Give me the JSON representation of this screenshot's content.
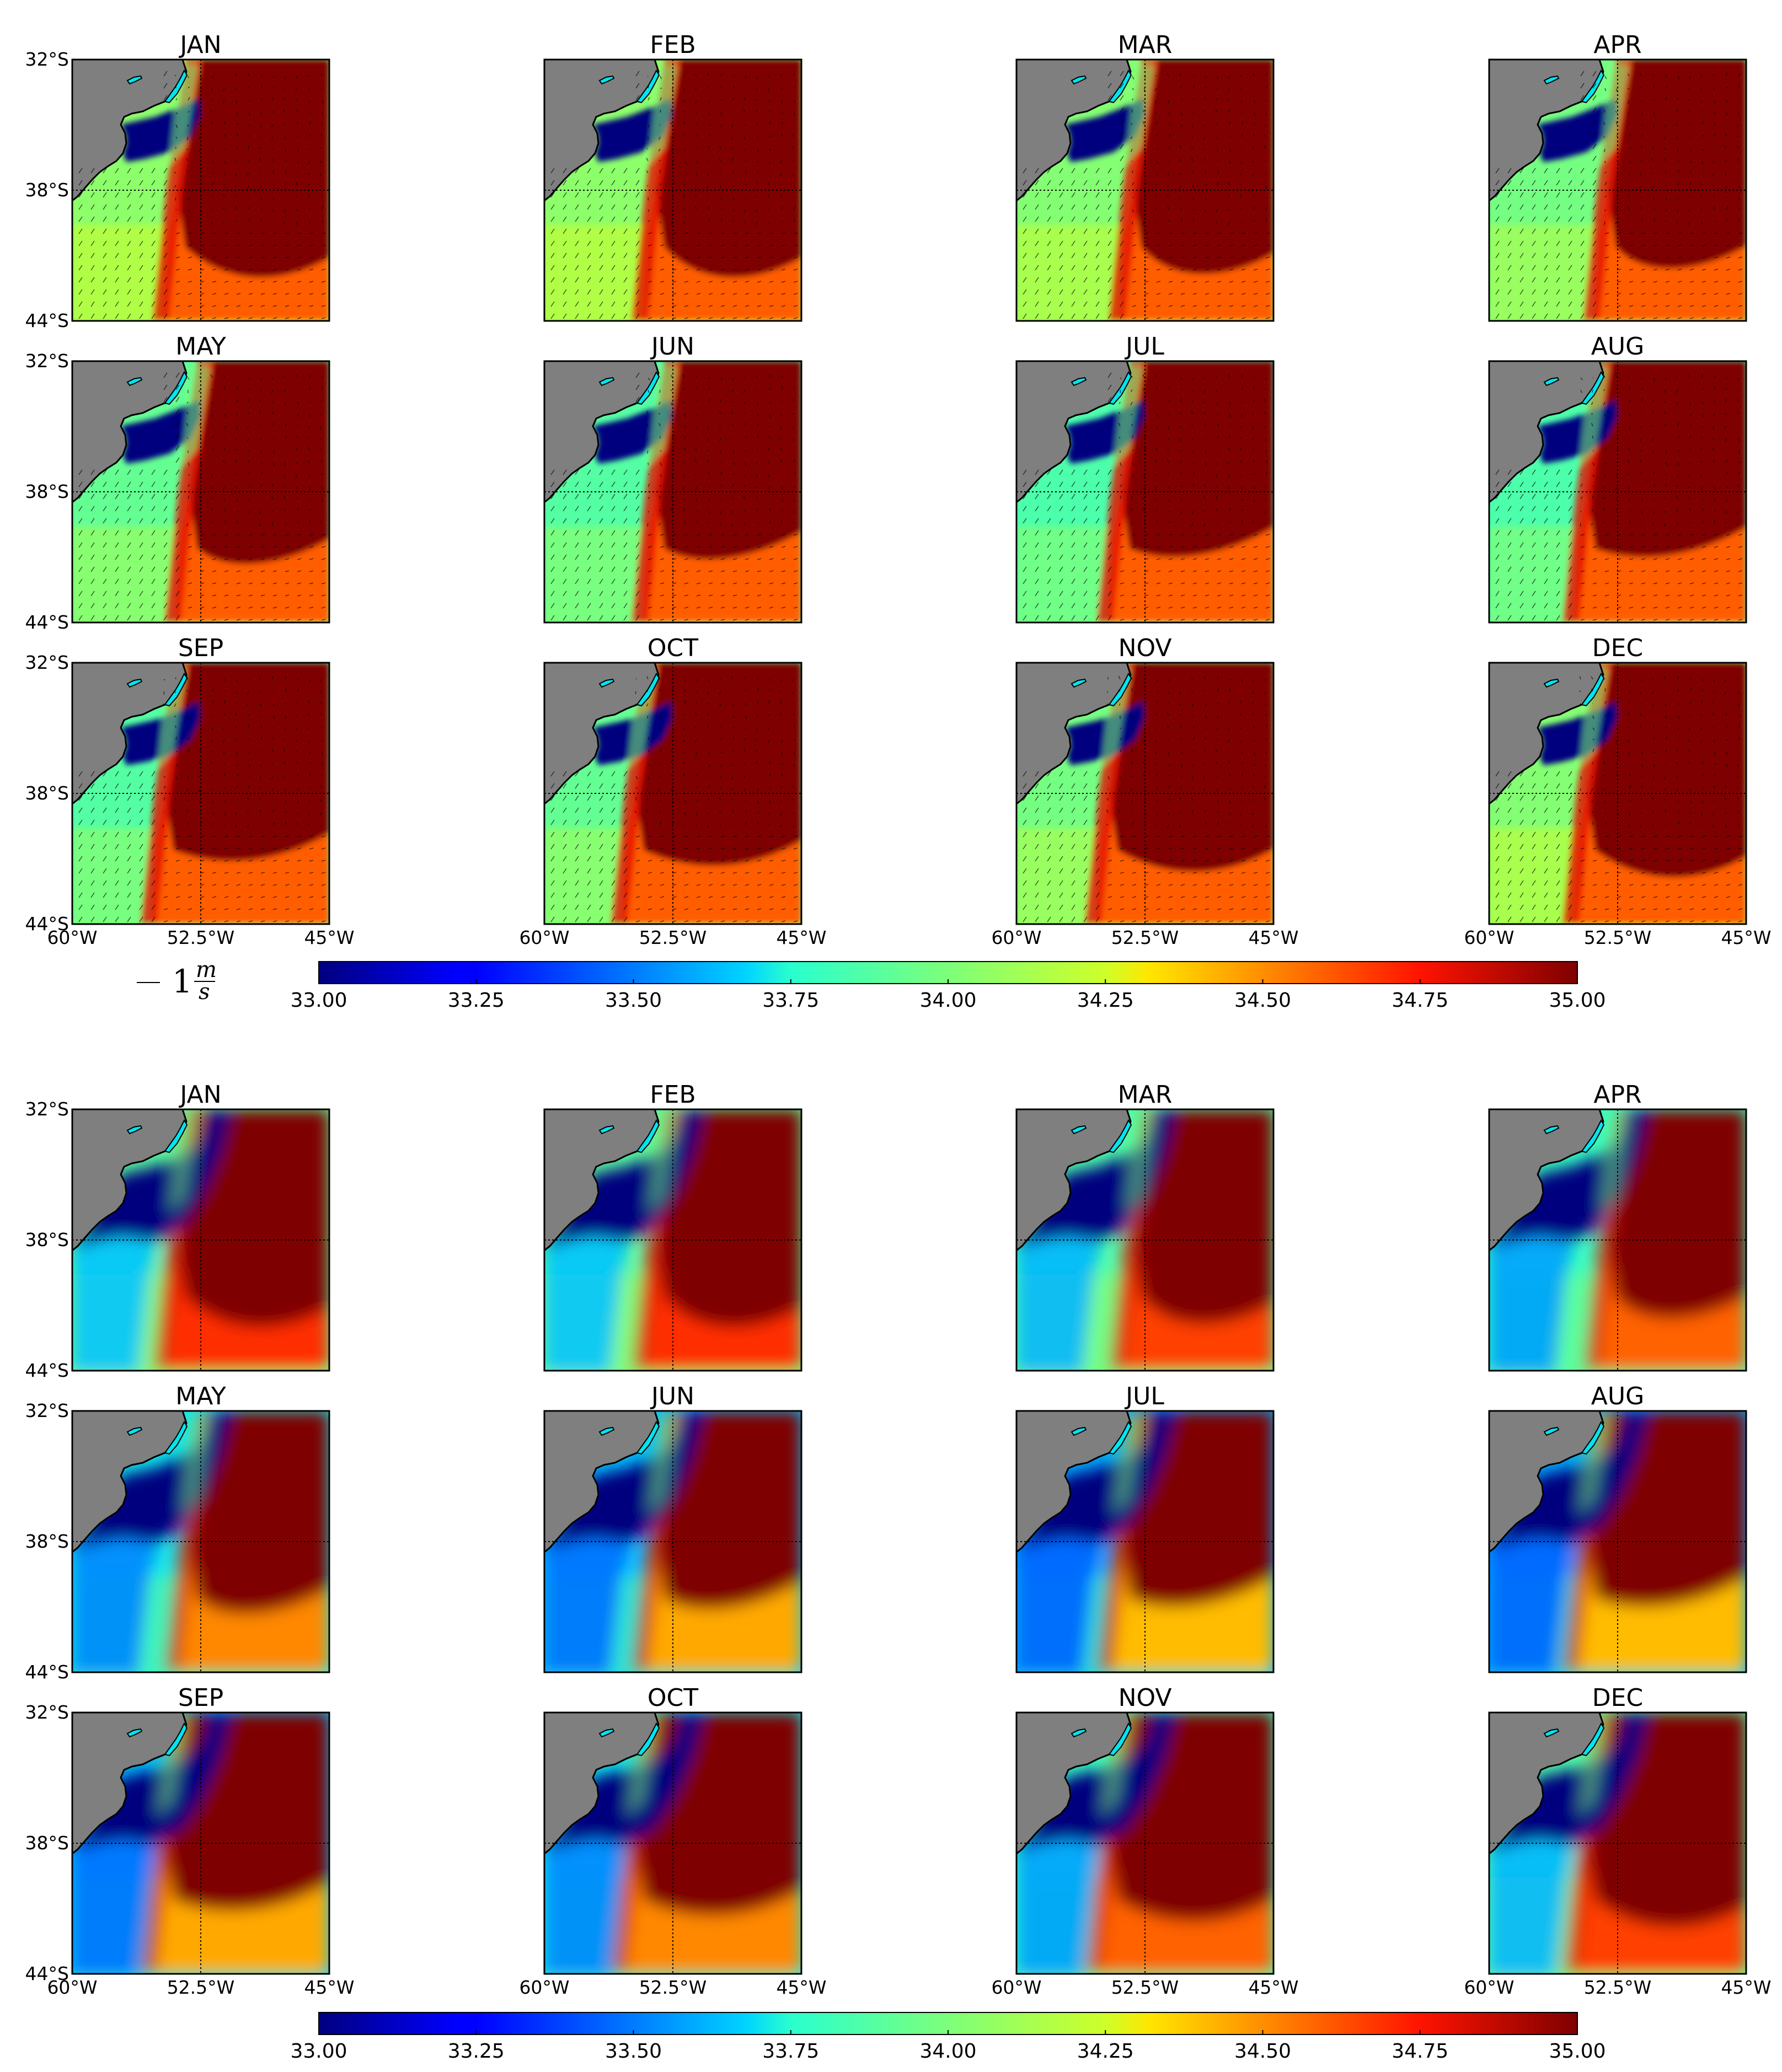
{
  "chart_data": {
    "type": "heatmap",
    "title": "",
    "months": [
      "JAN",
      "FEB",
      "MAR",
      "APR",
      "MAY",
      "JUN",
      "JUL",
      "AUG",
      "SEP",
      "OCT",
      "NOV",
      "DEC"
    ],
    "grid": {
      "rows": 3,
      "cols": 4
    },
    "x_ticks": [
      "60°W",
      "52.5°W",
      "45°W"
    ],
    "y_ticks": [
      "32°S",
      "38°S",
      "44°S"
    ],
    "xlim": [
      -60,
      -45
    ],
    "ylim": [
      -44,
      -32
    ],
    "gridlines": {
      "lon": -52.5,
      "lat": -38
    },
    "colormap": "jet",
    "colorbar": {
      "range": [
        33.0,
        35.0
      ],
      "ticks": [
        "33.00",
        "33.25",
        "33.50",
        "33.75",
        "34.00",
        "34.25",
        "34.50",
        "34.75",
        "35.00"
      ]
    },
    "vector_key": {
      "magnitude": "1",
      "unit_num": "m",
      "unit_den": "s"
    },
    "panel_sets": [
      {
        "name": "upper",
        "has_vectors": true
      },
      {
        "name": "lower",
        "has_vectors": false
      }
    ]
  },
  "colors": {
    "land": "#7f7f7f",
    "lagoon": "#00e5f0",
    "coast": "#000000"
  }
}
